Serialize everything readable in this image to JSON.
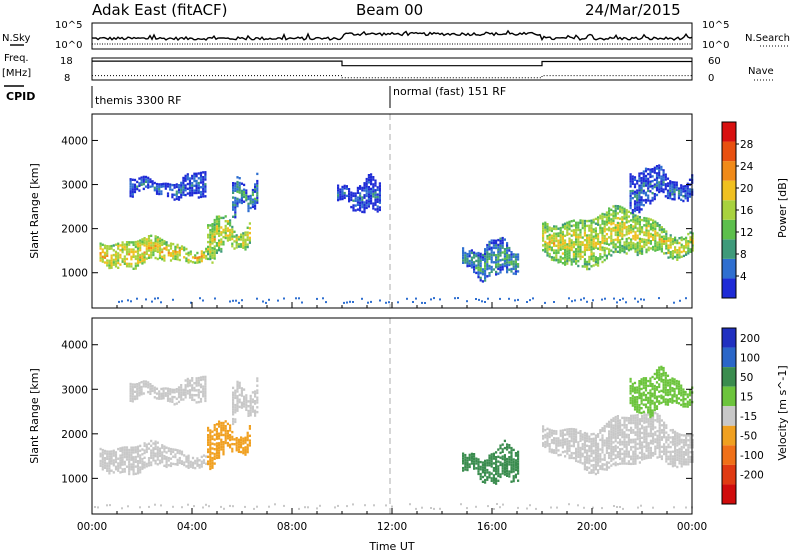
{
  "header": {
    "station": "Adak East (fitACF)",
    "beam": "Beam 00",
    "date": "24/Mar/2015"
  },
  "colors": {
    "power_scale": [
      "#1e2bd6",
      "#2f6fd0",
      "#3e9a7a",
      "#5cbf4c",
      "#a8d23e",
      "#f0c020",
      "#f08a18",
      "#e85010",
      "#d81010"
    ],
    "velocity_scale": [
      "#2030c0",
      "#2a66c8",
      "#3a8c4e",
      "#6cc43c",
      "#c8c8c8",
      "#f0a020",
      "#f07018",
      "#e03a12",
      "#d00c0c"
    ]
  },
  "chart_data": [
    {
      "type": "line",
      "panel": "nsky-nsearch",
      "left_label": "N.Sky",
      "right_label": "N.Search",
      "left_ticks": [
        "10^5",
        "10^0"
      ],
      "right_ticks": [
        "10^5",
        "10^0"
      ],
      "xlim": [
        0,
        24
      ]
    },
    {
      "type": "line",
      "panel": "freq-nave",
      "left_label": "Freq.",
      "left_unit": "[MHz]",
      "right_label": "Nave",
      "left_ticks": [
        18,
        8
      ],
      "right_ticks": [
        60,
        0
      ],
      "ylim_left": [
        8,
        18
      ],
      "ylim_right": [
        0,
        60
      ],
      "freq_series": [
        {
          "from": 0,
          "to": 10,
          "value": 16.6
        },
        {
          "from": 10,
          "to": 18,
          "value": 14.5
        },
        {
          "from": 18,
          "to": 24,
          "value": 16.4
        }
      ],
      "nave_series": [
        {
          "from": 0,
          "to": 10,
          "value": 12
        },
        {
          "from": 10,
          "to": 18,
          "value": 6
        },
        {
          "from": 18,
          "to": 24,
          "value": 12
        }
      ]
    },
    {
      "type": "table",
      "panel": "cpid",
      "label": "CPID",
      "entries": [
        {
          "start": 0,
          "end": 12,
          "text": "themis 3300 RF"
        },
        {
          "start": 12,
          "end": 24,
          "text": "normal (fast) 151 RF"
        }
      ]
    },
    {
      "type": "heatmap",
      "panel": "power",
      "ylabel": "Slant Range [km]",
      "ylim": [
        200,
        4600
      ],
      "y_ticks": [
        1000,
        2000,
        3000,
        4000
      ],
      "colorbar_label": "Power [dB]",
      "colorbar_ticks": [
        28,
        24,
        20,
        16,
        12,
        8,
        4
      ],
      "colorbar_range": [
        0,
        32
      ],
      "regions": [
        {
          "t_start": 0.3,
          "t_end": 4.6,
          "range_low": 1100,
          "range_high": 1850,
          "level": 20
        },
        {
          "t_start": 4.6,
          "t_end": 6.3,
          "range_low": 1300,
          "range_high": 2400,
          "level": 18
        },
        {
          "t_start": 5.6,
          "t_end": 6.6,
          "range_low": 2200,
          "range_high": 3300,
          "level": 9
        },
        {
          "t_start": 1.5,
          "t_end": 4.5,
          "range_low": 2600,
          "range_high": 3300,
          "level": 6
        },
        {
          "t_start": 9.8,
          "t_end": 11.5,
          "range_low": 2300,
          "range_high": 3200,
          "level": 5
        },
        {
          "t_start": 14.8,
          "t_end": 17.0,
          "range_low": 800,
          "range_high": 1800,
          "level": 10
        },
        {
          "t_start": 18.0,
          "t_end": 24.0,
          "range_low": 1100,
          "range_high": 2500,
          "level": 18
        },
        {
          "t_start": 21.5,
          "t_end": 24.0,
          "range_low": 2400,
          "range_high": 3500,
          "level": 6
        }
      ]
    },
    {
      "type": "heatmap",
      "panel": "velocity",
      "ylabel": "Slant Range [km]",
      "ylim": [
        200,
        4600
      ],
      "y_ticks": [
        1000,
        2000,
        3000,
        4000
      ],
      "xlabel": "Time UT",
      "x_ticks": [
        "00:00",
        "04:00",
        "08:00",
        "12:00",
        "16:00",
        "20:00",
        "00:00"
      ],
      "xlim": [
        0,
        24
      ],
      "colorbar_label": "Velocity [m s^-1]",
      "colorbar_ticks": [
        200,
        100,
        50,
        15,
        -15,
        -50,
        -100,
        -200
      ],
      "regions": [
        {
          "t_start": 0.3,
          "t_end": 4.6,
          "range_low": 1100,
          "range_high": 1850,
          "velocity": 0
        },
        {
          "t_start": 4.6,
          "t_end": 6.3,
          "range_low": 1300,
          "range_high": 2400,
          "velocity": -20
        },
        {
          "t_start": 5.6,
          "t_end": 6.6,
          "range_low": 2200,
          "range_high": 3300,
          "velocity": 0
        },
        {
          "t_start": 1.5,
          "t_end": 4.5,
          "range_low": 2600,
          "range_high": 3300,
          "velocity": 0
        },
        {
          "t_start": 14.8,
          "t_end": 17.0,
          "range_low": 800,
          "range_high": 1800,
          "velocity": 60
        },
        {
          "t_start": 18.0,
          "t_end": 24.0,
          "range_low": 1100,
          "range_high": 2500,
          "velocity": 0
        },
        {
          "t_start": 21.5,
          "t_end": 24.0,
          "range_low": 2400,
          "range_high": 3500,
          "velocity": 30
        }
      ]
    }
  ]
}
